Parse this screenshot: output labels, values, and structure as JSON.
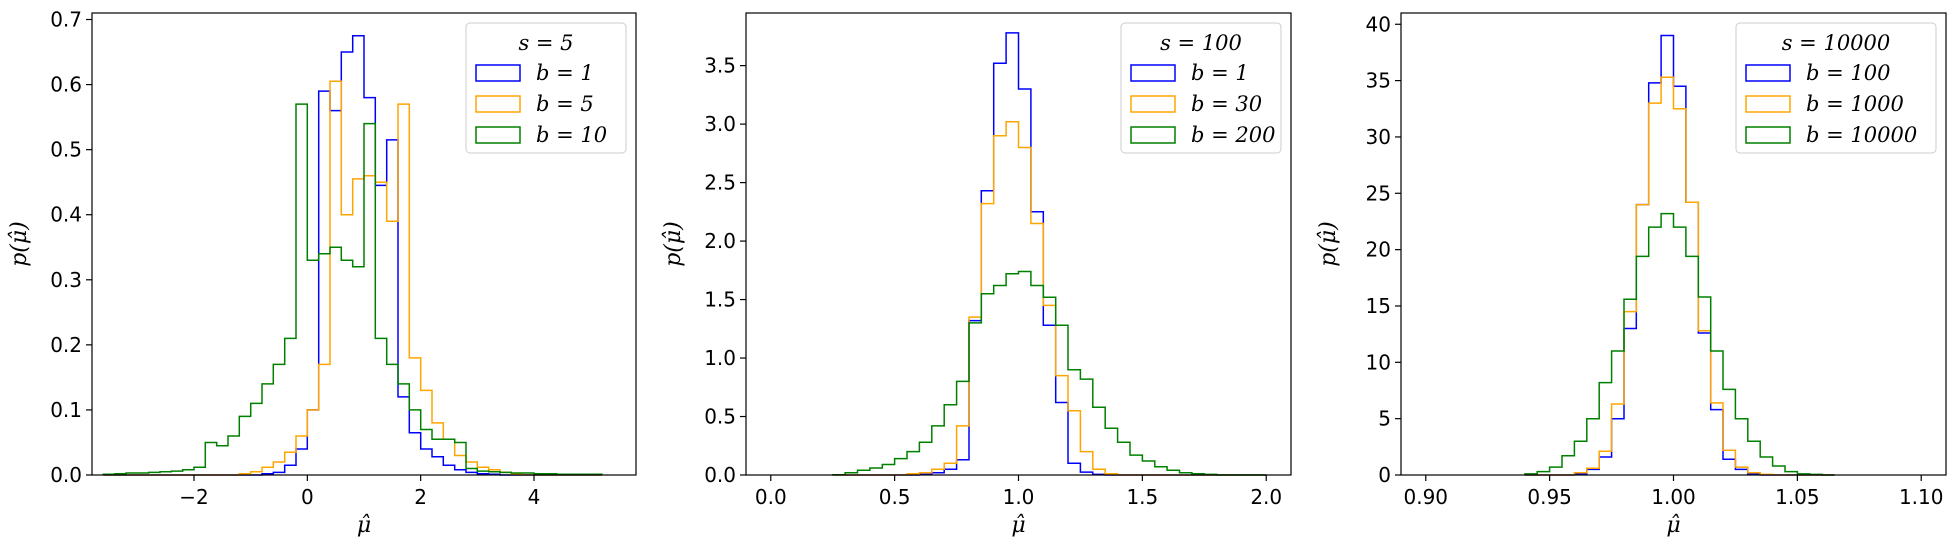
{
  "chart_data": [
    {
      "type": "histogram",
      "xlabel": "μ̂",
      "ylabel": "p(μ̂)",
      "xlim": [
        -3.8,
        5.8
      ],
      "ylim": [
        0,
        0.71
      ],
      "xticks": [
        -2,
        0,
        2,
        4
      ],
      "xtick_labels": [
        "−2",
        "0",
        "2",
        "4"
      ],
      "yticks": [
        0,
        0.1,
        0.2,
        0.3,
        0.4,
        0.5,
        0.6,
        0.7
      ],
      "ytick_labels": [
        "0.0",
        "0.1",
        "0.2",
        "0.3",
        "0.4",
        "0.5",
        "0.6",
        "0.7"
      ],
      "legend": {
        "title": "s = 5",
        "position": "top-right"
      },
      "bin_edges": [
        -3.6,
        -3.4,
        -3.2,
        -3.0,
        -2.8,
        -2.6,
        -2.4,
        -2.2,
        -2.0,
        -1.8,
        -1.6,
        -1.4,
        -1.2,
        -1.0,
        -0.8,
        -0.6,
        -0.4,
        -0.2,
        0.0,
        0.2,
        0.4,
        0.6,
        0.8,
        1.0,
        1.2,
        1.4,
        1.6,
        1.8,
        2.0,
        2.2,
        2.4,
        2.6,
        2.8,
        3.0,
        3.2,
        3.4,
        3.6,
        3.8,
        4.0,
        4.2,
        4.4,
        4.6,
        4.8,
        5.0,
        5.2
      ],
      "series": [
        {
          "name": "b = 1",
          "color": "#0000ff",
          "values": [
            0,
            0,
            0,
            0,
            0,
            0,
            0,
            0,
            0,
            0,
            0,
            0,
            0,
            0,
            0.002,
            0.004,
            0.015,
            0.04,
            0.1,
            0.59,
            0.56,
            0.65,
            0.675,
            0.58,
            0.445,
            0.515,
            0.12,
            0.065,
            0.04,
            0.028,
            0.015,
            0.008,
            0.004,
            0.002,
            0.001,
            0,
            0,
            0,
            0,
            0,
            0,
            0,
            0,
            0
          ]
        },
        {
          "name": "b = 5",
          "color": "#ffa500",
          "values": [
            0,
            0,
            0,
            0,
            0,
            0,
            0,
            0,
            0,
            0,
            0,
            0,
            0.002,
            0.005,
            0.012,
            0.02,
            0.035,
            0.06,
            0.1,
            0.17,
            0.605,
            0.4,
            0.455,
            0.46,
            0.45,
            0.39,
            0.57,
            0.18,
            0.13,
            0.08,
            0.055,
            0.03,
            0.02,
            0.012,
            0.008,
            0.004,
            0.002,
            0,
            0,
            0,
            0,
            0,
            0,
            0
          ]
        },
        {
          "name": "b = 10",
          "color": "#008000",
          "values": [
            0.001,
            0.002,
            0.003,
            0.003,
            0.004,
            0.005,
            0.006,
            0.008,
            0.012,
            0.05,
            0.045,
            0.06,
            0.09,
            0.11,
            0.14,
            0.17,
            0.21,
            0.57,
            0.33,
            0.34,
            0.35,
            0.33,
            0.32,
            0.54,
            0.21,
            0.17,
            0.14,
            0.1,
            0.07,
            0.055,
            0.055,
            0.05,
            0.01,
            0.006,
            0.005,
            0.004,
            0.003,
            0.003,
            0.002,
            0.002,
            0.001,
            0.001,
            0.001,
            0.001
          ]
        }
      ]
    },
    {
      "type": "histogram",
      "xlabel": "μ̂",
      "ylabel": "p(μ̂)",
      "xlim": [
        -0.1,
        2.1
      ],
      "ylim": [
        0,
        3.95
      ],
      "xticks": [
        0,
        0.5,
        1.0,
        1.5,
        2.0
      ],
      "xtick_labels": [
        "0.0",
        "0.5",
        "1.0",
        "1.5",
        "2.0"
      ],
      "yticks": [
        0,
        0.5,
        1.0,
        1.5,
        2.0,
        2.5,
        3.0,
        3.5
      ],
      "ytick_labels": [
        "0.0",
        "0.5",
        "1.0",
        "1.5",
        "2.0",
        "2.5",
        "3.0",
        "3.5"
      ],
      "legend": {
        "title": "s = 100",
        "position": "top-right"
      },
      "bin_edges": [
        0.25,
        0.3,
        0.35,
        0.4,
        0.45,
        0.5,
        0.55,
        0.6,
        0.65,
        0.7,
        0.75,
        0.8,
        0.85,
        0.9,
        0.95,
        1.0,
        1.05,
        1.1,
        1.15,
        1.2,
        1.25,
        1.3,
        1.35,
        1.4,
        1.45,
        1.5,
        1.55,
        1.6,
        1.65,
        1.7,
        1.75,
        1.8,
        1.85,
        1.9,
        1.95,
        2.0
      ],
      "series": [
        {
          "name": "b = 1",
          "color": "#0000ff",
          "values": [
            0,
            0,
            0,
            0,
            0,
            0,
            0,
            0.005,
            0.02,
            0.05,
            0.13,
            1.32,
            2.43,
            3.52,
            3.78,
            3.3,
            2.25,
            1.28,
            0.62,
            0.1,
            0.025,
            0.005,
            0,
            0,
            0,
            0,
            0,
            0,
            0,
            0,
            0,
            0,
            0,
            0,
            0
          ]
        },
        {
          "name": "b = 30",
          "color": "#ffa500",
          "values": [
            0,
            0,
            0,
            0,
            0,
            0,
            0.01,
            0.02,
            0.05,
            0.1,
            0.42,
            1.35,
            2.32,
            2.9,
            3.02,
            2.8,
            2.15,
            1.45,
            0.85,
            0.55,
            0.2,
            0.05,
            0.01,
            0,
            0,
            0,
            0,
            0,
            0,
            0,
            0,
            0,
            0,
            0,
            0
          ]
        },
        {
          "name": "b = 200",
          "color": "#008000",
          "values": [
            0.002,
            0.02,
            0.04,
            0.06,
            0.09,
            0.14,
            0.2,
            0.28,
            0.42,
            0.6,
            0.8,
            1.3,
            1.55,
            1.62,
            1.72,
            1.74,
            1.62,
            1.52,
            1.28,
            0.9,
            0.82,
            0.58,
            0.4,
            0.28,
            0.17,
            0.12,
            0.07,
            0.04,
            0.02,
            0.01,
            0.005,
            0,
            0,
            0,
            0
          ]
        }
      ]
    },
    {
      "type": "histogram",
      "xlabel": "μ̂",
      "ylabel": "p(μ̂)",
      "xlim": [
        0.89,
        1.11
      ],
      "ylim": [
        0,
        41
      ],
      "xticks": [
        0.9,
        0.95,
        1.0,
        1.05,
        1.1
      ],
      "xtick_labels": [
        "0.90",
        "0.95",
        "1.00",
        "1.05",
        "1.10"
      ],
      "yticks": [
        0,
        5,
        10,
        15,
        20,
        25,
        30,
        35,
        40
      ],
      "ytick_labels": [
        "0",
        "5",
        "10",
        "15",
        "20",
        "25",
        "30",
        "35",
        "40"
      ],
      "legend": {
        "title": "s = 10000",
        "position": "top-right"
      },
      "bin_edges": [
        0.94,
        0.945,
        0.95,
        0.955,
        0.96,
        0.965,
        0.97,
        0.975,
        0.98,
        0.985,
        0.99,
        0.995,
        1.0,
        1.005,
        1.01,
        1.015,
        1.02,
        1.025,
        1.03,
        1.035,
        1.04,
        1.045,
        1.05,
        1.055,
        1.06,
        1.065
      ],
      "series": [
        {
          "name": "b = 100",
          "color": "#0000ff",
          "values": [
            0,
            0,
            0,
            0,
            0.1,
            0.5,
            1.6,
            5.0,
            13.0,
            24.0,
            34.8,
            39.0,
            34.5,
            24.2,
            12.6,
            5.8,
            1.4,
            0.5,
            0.1,
            0,
            0,
            0,
            0,
            0,
            0
          ]
        },
        {
          "name": "b = 1000",
          "color": "#ffa500",
          "values": [
            0,
            0,
            0,
            0,
            0.2,
            0.6,
            2.1,
            6.3,
            14.5,
            24.0,
            33.0,
            35.3,
            32.5,
            24.2,
            12.8,
            6.4,
            2.2,
            0.7,
            0.2,
            0.05,
            0,
            0,
            0,
            0,
            0
          ]
        },
        {
          "name": "b = 10000",
          "color": "#008000",
          "values": [
            0.1,
            0.3,
            0.7,
            1.7,
            3.0,
            5.0,
            8.2,
            11.0,
            15.6,
            19.4,
            22.0,
            23.2,
            22.0,
            19.4,
            15.8,
            11.0,
            7.6,
            5.0,
            3.0,
            1.6,
            0.8,
            0.3,
            0.1,
            0.05,
            0
          ]
        }
      ]
    }
  ]
}
